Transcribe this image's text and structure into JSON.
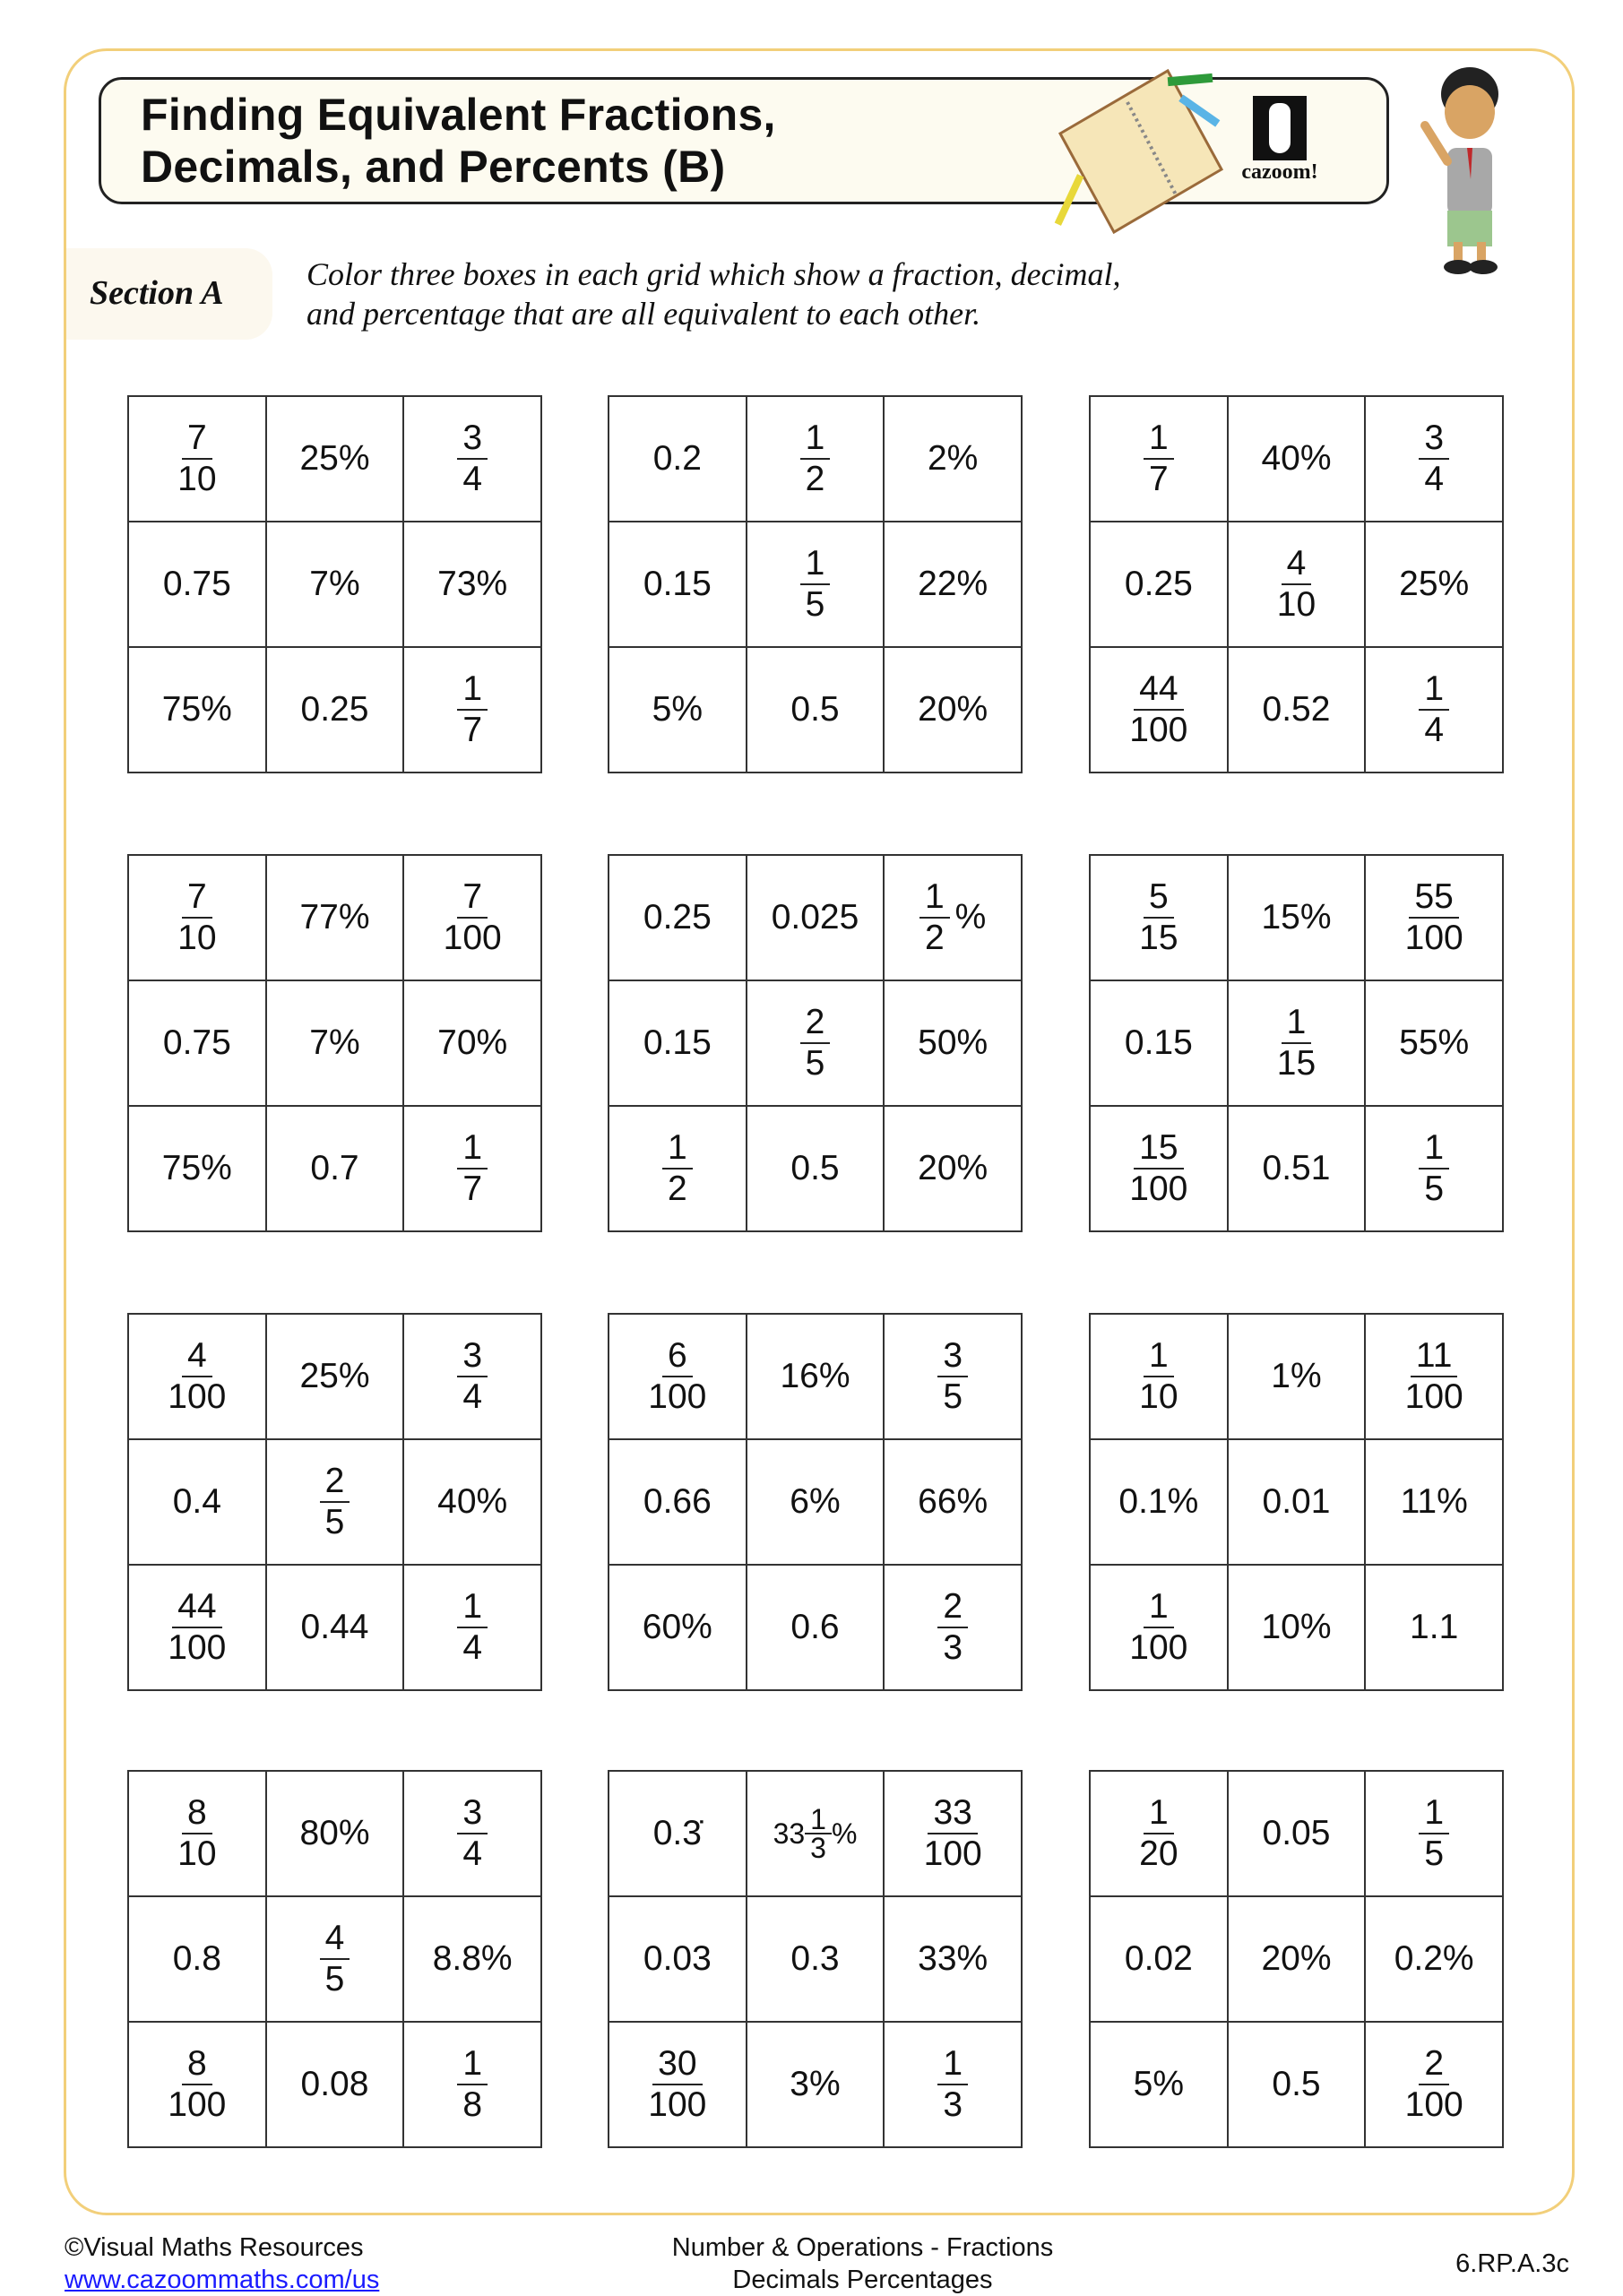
{
  "title": {
    "line1": "Finding Equivalent Fractions,",
    "line2": "Decimals, and Percents (B)"
  },
  "logo_text": "cazoom!",
  "section": {
    "label": "Section A",
    "instruction_line1": "Color three boxes in each grid which show a fraction, decimal,",
    "instruction_line2": "and percentage that are all equivalent to each other."
  },
  "grids": [
    [
      {
        "n": "7",
        "d": "10"
      },
      {
        "t": "25%"
      },
      {
        "n": "3",
        "d": "4"
      },
      {
        "t": "0.75"
      },
      {
        "t": "7%"
      },
      {
        "t": "73%"
      },
      {
        "t": "75%"
      },
      {
        "t": "0.25"
      },
      {
        "n": "1",
        "d": "7"
      }
    ],
    [
      {
        "t": "0.2"
      },
      {
        "n": "1",
        "d": "2"
      },
      {
        "t": "2%"
      },
      {
        "t": "0.15"
      },
      {
        "n": "1",
        "d": "5"
      },
      {
        "t": "22%"
      },
      {
        "t": "5%"
      },
      {
        "t": "0.5"
      },
      {
        "t": "20%"
      }
    ],
    [
      {
        "n": "1",
        "d": "7"
      },
      {
        "t": "40%"
      },
      {
        "n": "3",
        "d": "4"
      },
      {
        "t": "0.25"
      },
      {
        "n": "4",
        "d": "10"
      },
      {
        "t": "25%"
      },
      {
        "n": "44",
        "d": "100"
      },
      {
        "t": "0.52"
      },
      {
        "n": "1",
        "d": "4"
      }
    ],
    [
      {
        "n": "7",
        "d": "10"
      },
      {
        "t": "77%"
      },
      {
        "n": "7",
        "d": "100"
      },
      {
        "t": "0.75"
      },
      {
        "t": "7%"
      },
      {
        "t": "70%"
      },
      {
        "t": "75%"
      },
      {
        "t": "0.7"
      },
      {
        "n": "1",
        "d": "7"
      }
    ],
    [
      {
        "t": "0.25"
      },
      {
        "t": "0.025"
      },
      {
        "n": "1",
        "d": "2",
        "s": "%"
      },
      {
        "t": "0.15"
      },
      {
        "n": "2",
        "d": "5"
      },
      {
        "t": "50%"
      },
      {
        "n": "1",
        "d": "2"
      },
      {
        "t": "0.5"
      },
      {
        "t": "20%"
      }
    ],
    [
      {
        "n": "5",
        "d": "15"
      },
      {
        "t": "15%"
      },
      {
        "n": "55",
        "d": "100"
      },
      {
        "t": "0.15"
      },
      {
        "n": "1",
        "d": "15"
      },
      {
        "t": "55%"
      },
      {
        "n": "15",
        "d": "100"
      },
      {
        "t": "0.51"
      },
      {
        "n": "1",
        "d": "5"
      }
    ],
    [
      {
        "n": "4",
        "d": "100"
      },
      {
        "t": "25%"
      },
      {
        "n": "3",
        "d": "4"
      },
      {
        "t": "0.4"
      },
      {
        "n": "2",
        "d": "5"
      },
      {
        "t": "40%"
      },
      {
        "n": "44",
        "d": "100"
      },
      {
        "t": "0.44"
      },
      {
        "n": "1",
        "d": "4"
      }
    ],
    [
      {
        "n": "6",
        "d": "100"
      },
      {
        "t": "16%"
      },
      {
        "n": "3",
        "d": "5"
      },
      {
        "t": "0.66"
      },
      {
        "t": "6%"
      },
      {
        "t": "66%"
      },
      {
        "t": "60%"
      },
      {
        "t": "0.6"
      },
      {
        "n": "2",
        "d": "3"
      }
    ],
    [
      {
        "n": "1",
        "d": "10"
      },
      {
        "t": "1%"
      },
      {
        "n": "11",
        "d": "100"
      },
      {
        "t": "0.1%"
      },
      {
        "t": "0.01"
      },
      {
        "t": "11%"
      },
      {
        "n": "1",
        "d": "100"
      },
      {
        "t": "10%"
      },
      {
        "t": "1.1"
      }
    ],
    [
      {
        "n": "8",
        "d": "10"
      },
      {
        "t": "80%"
      },
      {
        "n": "3",
        "d": "4"
      },
      {
        "t": "0.8"
      },
      {
        "n": "4",
        "d": "5"
      },
      {
        "t": "8.8%"
      },
      {
        "n": "8",
        "d": "100"
      },
      {
        "t": "0.08"
      },
      {
        "n": "1",
        "d": "8"
      }
    ],
    [
      {
        "t": "0.3̇"
      },
      {
        "w": "33",
        "n": "1",
        "d": "3",
        "s": "%"
      },
      {
        "n": "33",
        "d": "100"
      },
      {
        "t": "0.03"
      },
      {
        "t": "0.3"
      },
      {
        "t": "33%"
      },
      {
        "n": "30",
        "d": "100"
      },
      {
        "t": "3%"
      },
      {
        "n": "1",
        "d": "3"
      }
    ],
    [
      {
        "n": "1",
        "d": "20"
      },
      {
        "t": "0.05"
      },
      {
        "n": "1",
        "d": "5"
      },
      {
        "t": "0.02"
      },
      {
        "t": "20%"
      },
      {
        "t": "0.2%"
      },
      {
        "t": "5%"
      },
      {
        "t": "0.5"
      },
      {
        "n": "2",
        "d": "100"
      }
    ]
  ],
  "footer": {
    "copyright": "©Visual Maths Resources",
    "link": "www.cazoommaths.com/us",
    "topic_line1": "Number & Operations - Fractions",
    "topic_line2": "Decimals Percentages",
    "standard": "6.RP.A.3c"
  },
  "colors": {
    "frame": "#f2cf7a",
    "title_bg": "#fdfbf0",
    "link": "#1a1aff"
  }
}
